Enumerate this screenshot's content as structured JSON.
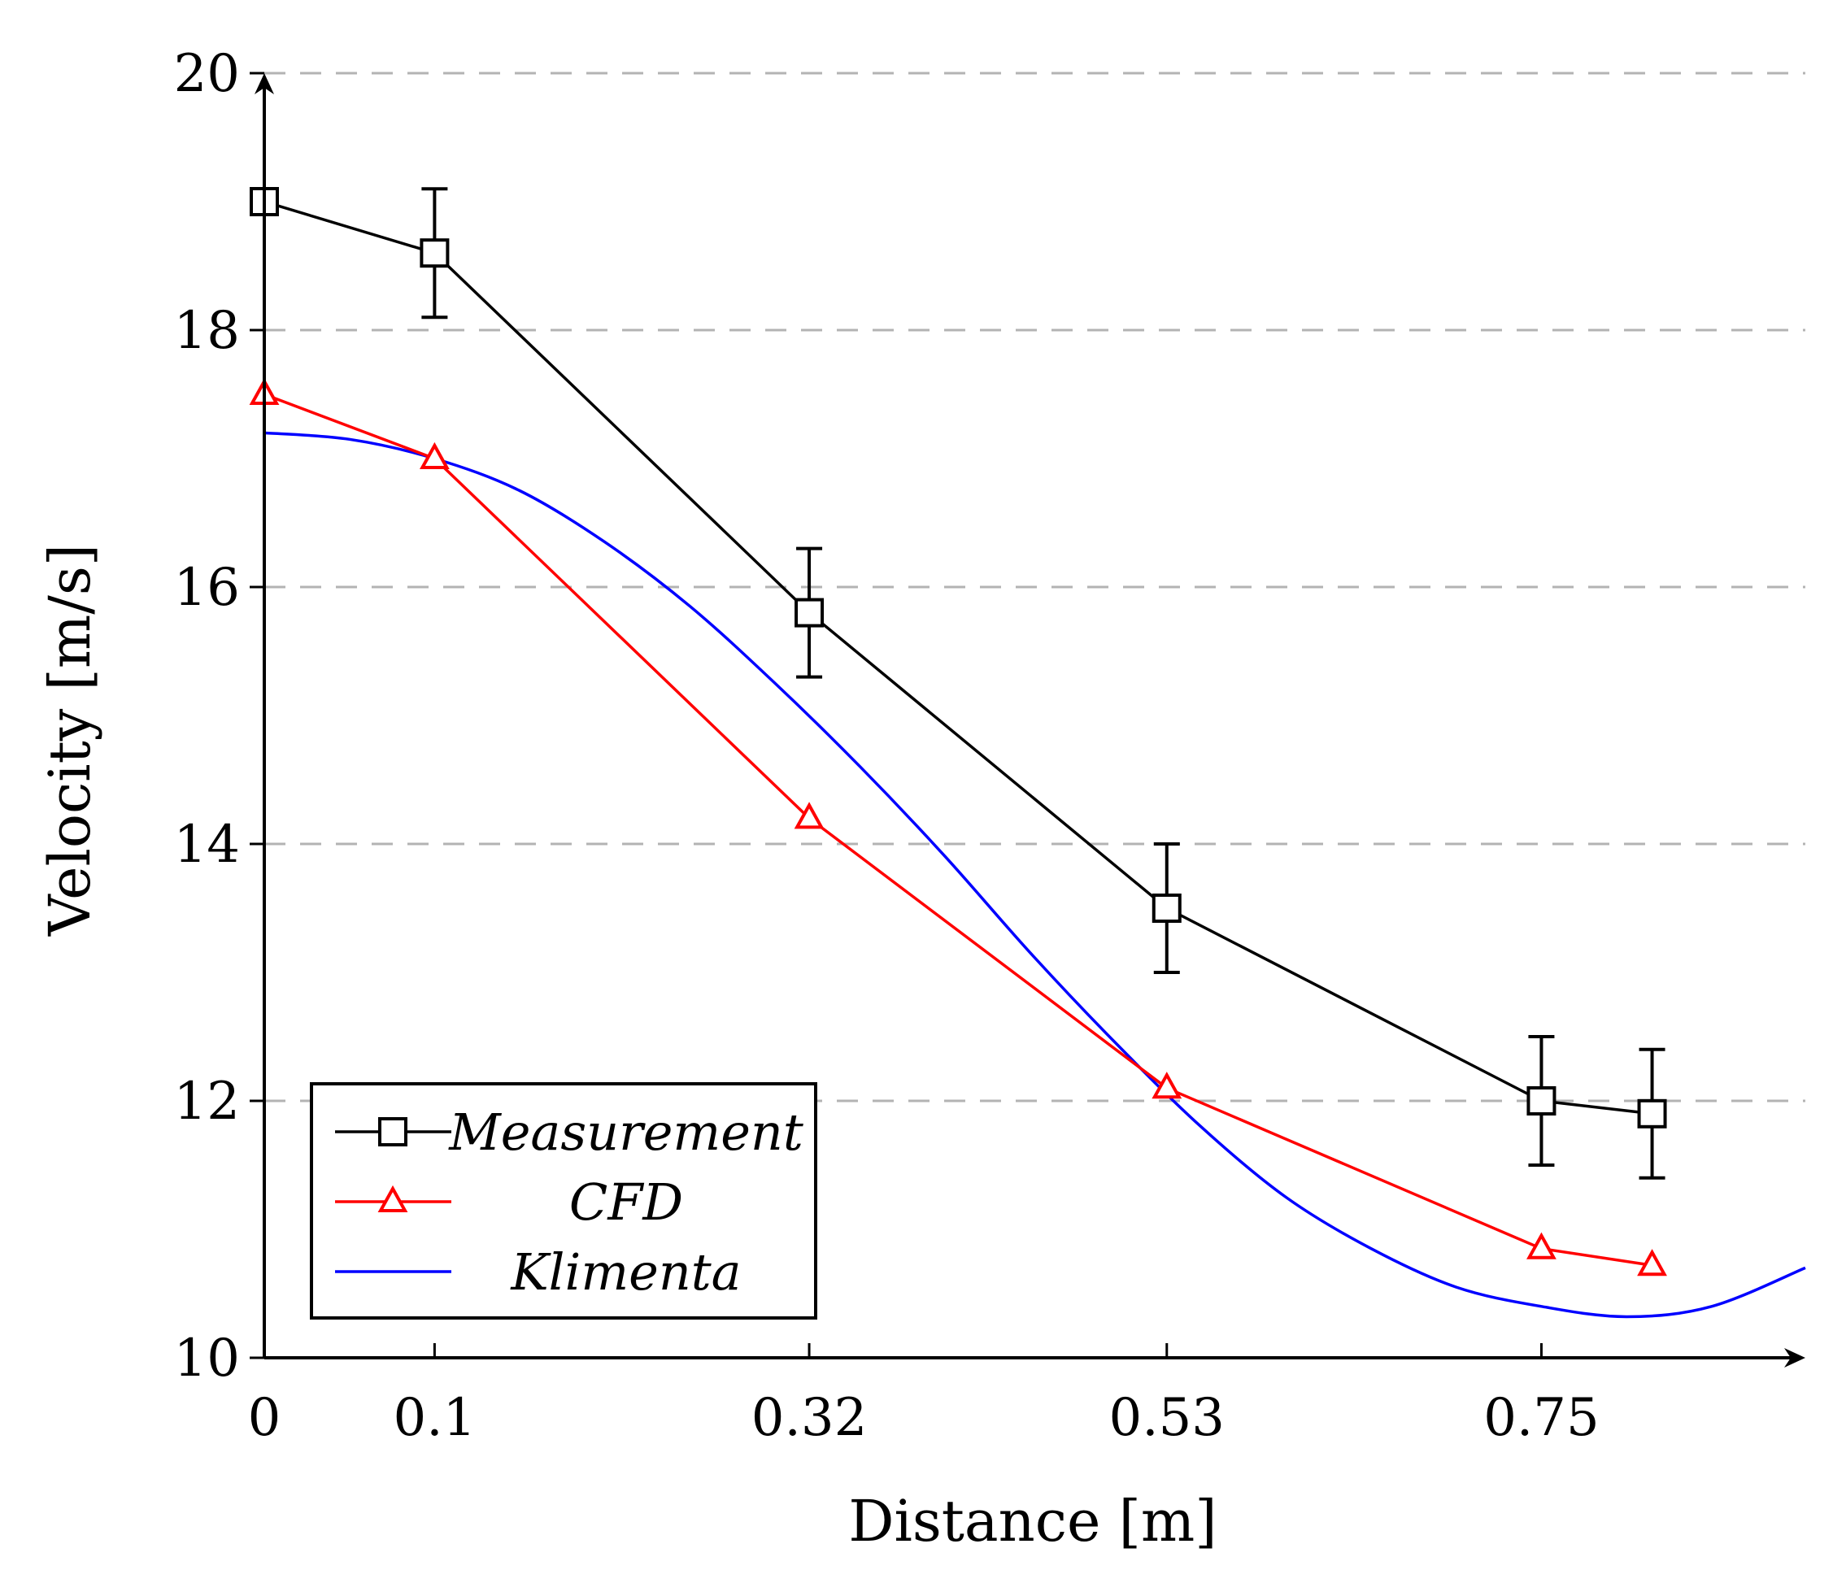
{
  "chart_data": {
    "type": "line",
    "xlabel": "Distance [m]",
    "ylabel": "Velocity [m/s]",
    "xlim": [
      0,
      0.905
    ],
    "ylim": [
      10,
      20
    ],
    "xticks": [
      0,
      0.1,
      0.32,
      0.53,
      0.75
    ],
    "xtick_labels": [
      "0",
      "0.1",
      "0.32",
      "0.53",
      "0.75"
    ],
    "yticks": [
      10,
      12,
      14,
      16,
      18,
      20
    ],
    "ytick_labels": [
      "10",
      "12",
      "14",
      "16",
      "18",
      "20"
    ],
    "grid": "horizontal dashed",
    "legend_position": "bottom-left",
    "series": [
      {
        "name": "Measurement",
        "color": "#000000",
        "marker": "square",
        "x": [
          0,
          0.1,
          0.32,
          0.53,
          0.75,
          0.815
        ],
        "y": [
          19.0,
          18.6,
          15.8,
          13.5,
          12.0,
          11.9
        ],
        "yerr": [
          0,
          0.5,
          0.5,
          0.5,
          0.5,
          0.5
        ]
      },
      {
        "name": "CFD",
        "color": "#ff0000",
        "marker": "triangle",
        "x": [
          0,
          0.1,
          0.32,
          0.53,
          0.75,
          0.815
        ],
        "y": [
          17.5,
          17.0,
          14.2,
          12.1,
          10.85,
          10.72
        ]
      },
      {
        "name": "Klimenta",
        "color": "#0000ff",
        "marker": "none",
        "smooth": true,
        "x": [
          0,
          0.05,
          0.1,
          0.15,
          0.2,
          0.25,
          0.3,
          0.35,
          0.4,
          0.45,
          0.5,
          0.55,
          0.6,
          0.65,
          0.7,
          0.75,
          0.8,
          0.85,
          0.905
        ],
        "y": [
          17.2,
          17.15,
          17.0,
          16.75,
          16.35,
          15.85,
          15.25,
          14.6,
          13.9,
          13.15,
          12.45,
          11.8,
          11.25,
          10.85,
          10.55,
          10.4,
          10.32,
          10.4,
          10.7
        ]
      }
    ]
  }
}
